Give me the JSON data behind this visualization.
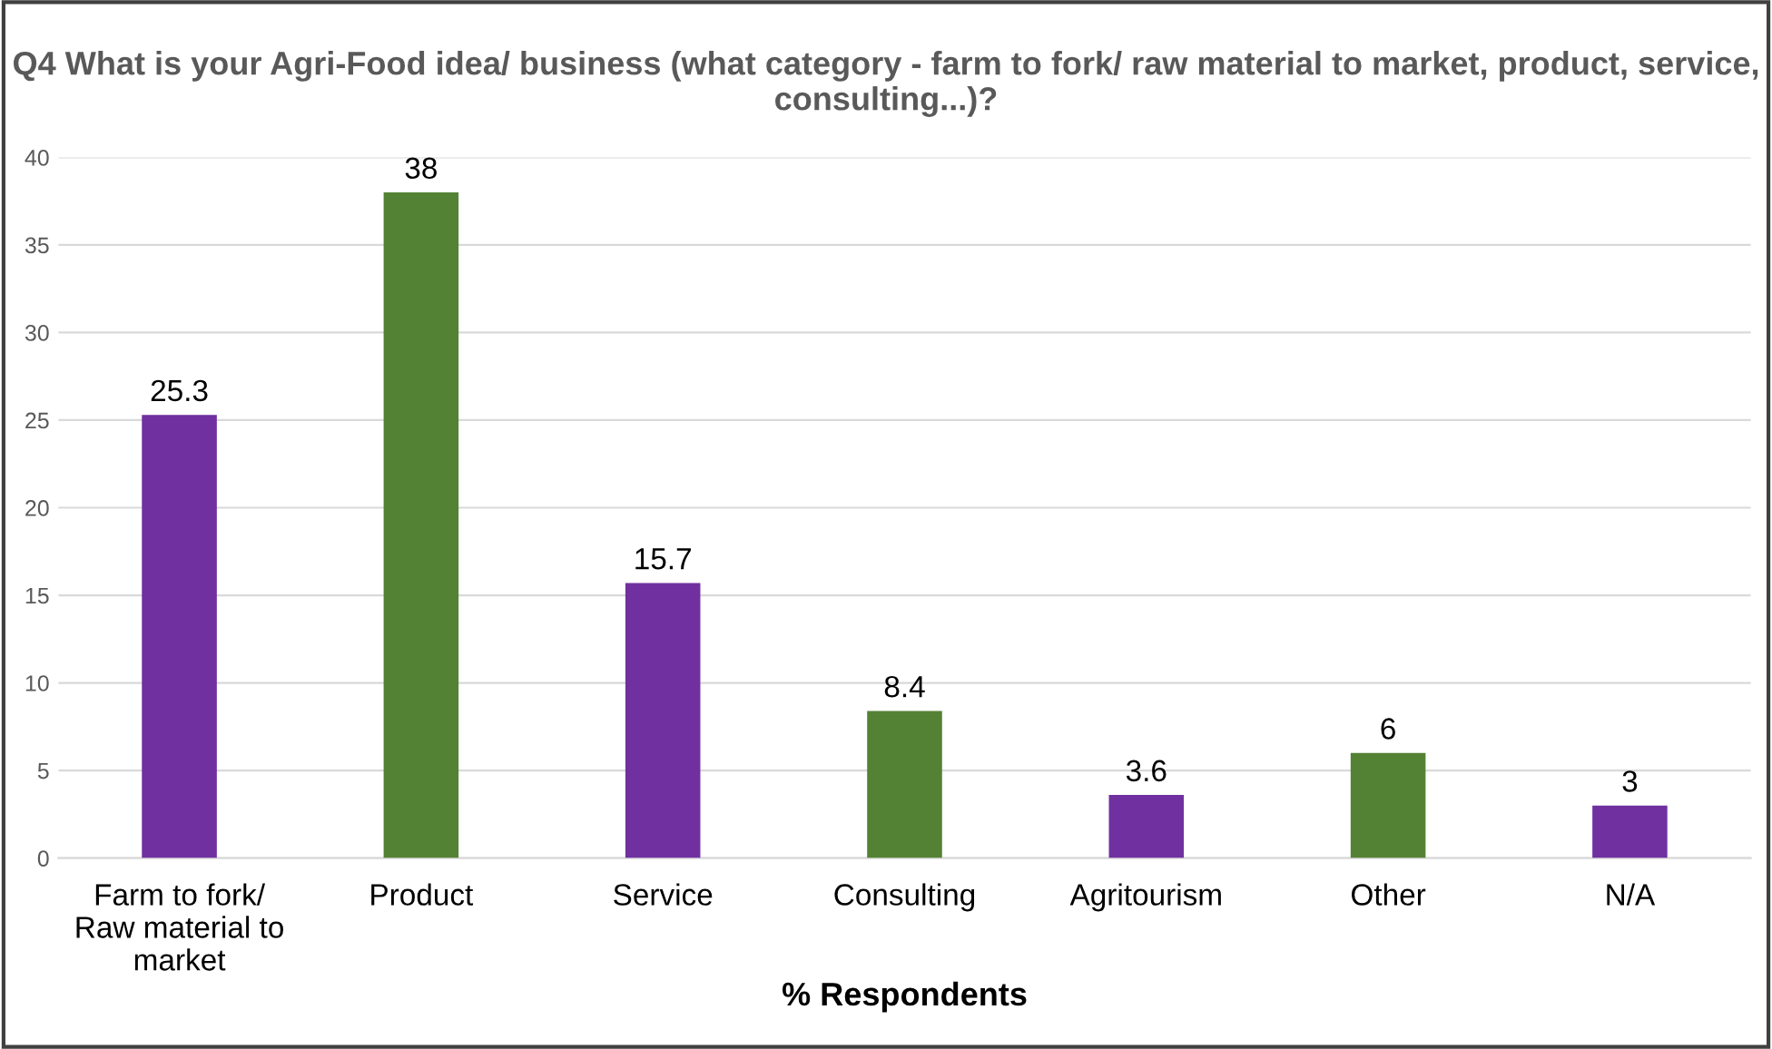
{
  "chart_data": {
    "type": "bar",
    "title": "Q4 What is your Agri-Food idea/ business (what category - farm to fork/ raw material to market, product, service, consulting...)?",
    "xlabel": "% Respondents",
    "categories": [
      "Farm to fork/\nRaw material to\nmarket",
      "Product",
      "Service",
      "Consulting",
      "Agritourism",
      "Other",
      "N/A"
    ],
    "values": [
      25.3,
      38,
      15.7,
      8.4,
      3.6,
      6,
      3
    ],
    "colors": [
      "#7030a0",
      "#548235",
      "#7030a0",
      "#548235",
      "#7030a0",
      "#548235",
      "#7030a0"
    ],
    "ylim": [
      0,
      40
    ],
    "yticks": [
      0,
      5,
      10,
      15,
      20,
      25,
      30,
      35,
      40
    ],
    "grid": "y",
    "data_labels": true
  }
}
